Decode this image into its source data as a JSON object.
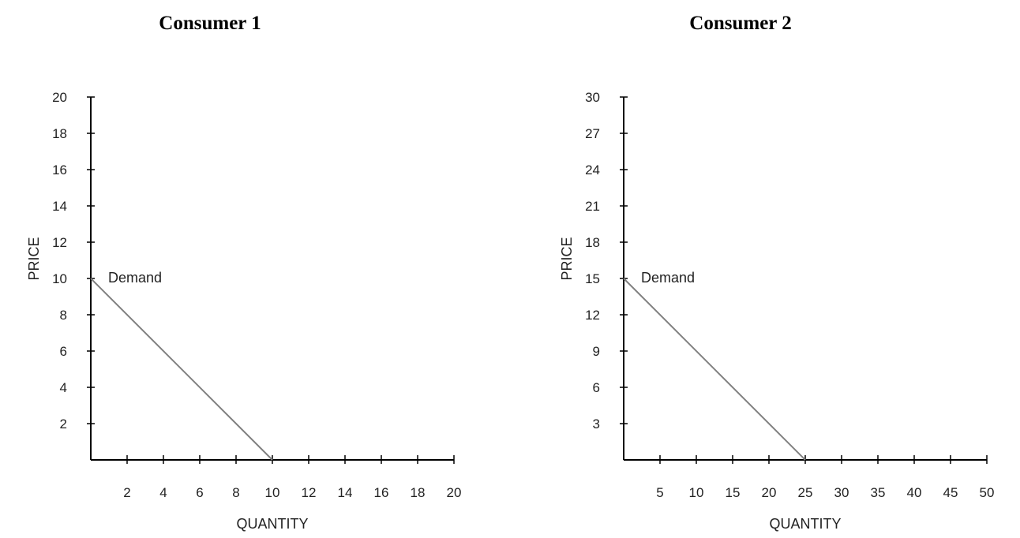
{
  "chart_data": [
    {
      "type": "line",
      "title": "Consumer 1",
      "xlabel": "QUANTITY",
      "ylabel": "PRICE",
      "xlim": [
        0,
        20
      ],
      "ylim": [
        0,
        20
      ],
      "x_ticks": [
        2,
        4,
        6,
        8,
        10,
        12,
        14,
        16,
        18,
        20
      ],
      "y_ticks": [
        2,
        4,
        6,
        8,
        10,
        12,
        14,
        16,
        18,
        20
      ],
      "grid": false,
      "series": [
        {
          "name": "Demand",
          "x": [
            0,
            10
          ],
          "y": [
            10,
            0
          ],
          "color": "#808080"
        }
      ]
    },
    {
      "type": "line",
      "title": "Consumer 2",
      "xlabel": "QUANTITY",
      "ylabel": "PRICE",
      "xlim": [
        0,
        50
      ],
      "ylim": [
        0,
        30
      ],
      "x_ticks": [
        5,
        10,
        15,
        20,
        25,
        30,
        35,
        40,
        45,
        50
      ],
      "y_ticks": [
        3,
        6,
        9,
        12,
        15,
        18,
        21,
        24,
        27,
        30
      ],
      "grid": false,
      "series": [
        {
          "name": "Demand",
          "x": [
            0,
            25
          ],
          "y": [
            15,
            0
          ],
          "color": "#808080"
        }
      ]
    }
  ]
}
